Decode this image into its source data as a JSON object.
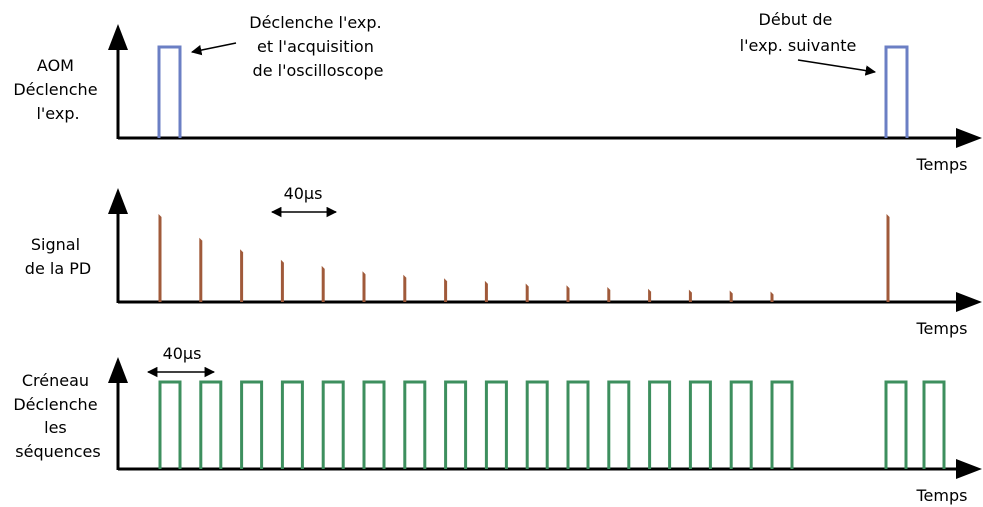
{
  "panels": [
    {
      "ylabel_lines": [
        "AOM",
        "Déclenche",
        "l'exp."
      ],
      "xlabel": "Temps",
      "color": "#6b7fc4",
      "annotation_trigger_lines": [
        "Déclenche l'exp.",
        "et l'acquisition",
        "de l'oscilloscope"
      ],
      "annotation_next_lines": [
        "Début de",
        "l'exp. suivante"
      ]
    },
    {
      "ylabel_lines": [
        "Signal",
        "de la PD"
      ],
      "xlabel": "Temps",
      "color": "#a05a3a",
      "interval_label": "40µs",
      "pulse_heights": [
        1.0,
        0.73,
        0.6,
        0.48,
        0.41,
        0.35,
        0.31,
        0.27,
        0.24,
        0.21,
        0.19,
        0.17,
        0.15,
        0.14,
        0.13,
        0.12
      ],
      "next_pulse_height": 1.0
    },
    {
      "ylabel_lines": [
        "Créneau",
        "Déclenche",
        "les",
        "séquences"
      ],
      "xlabel": "Temps",
      "color": "#3d8f5e",
      "interval_label": "40µs",
      "pulse_count": 16,
      "next_pulse_count": 2
    }
  ],
  "colors": {
    "axis": "#000000"
  }
}
